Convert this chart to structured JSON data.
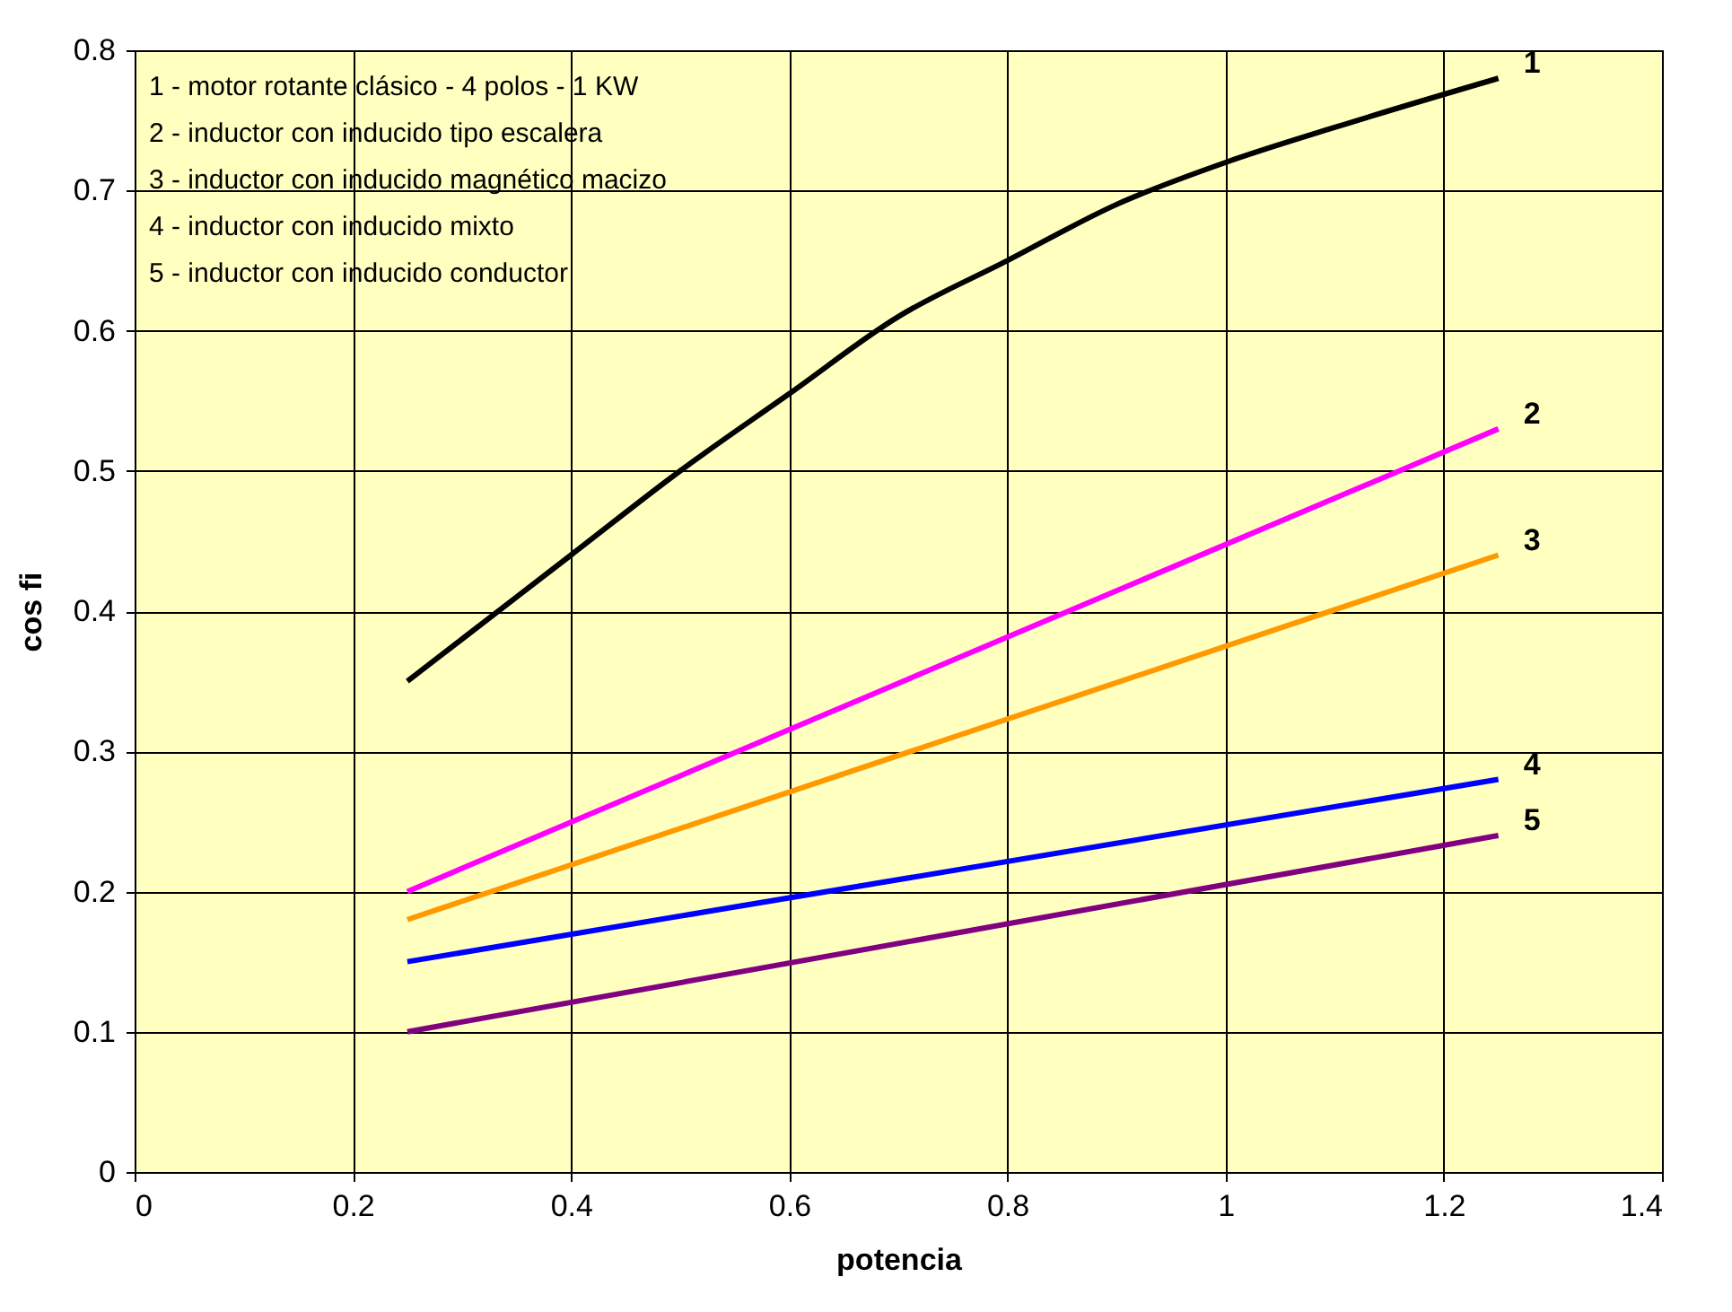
{
  "chart_data": {
    "type": "line",
    "xlabel": "potencia",
    "ylabel": "cos fi",
    "xlim": [
      0,
      1.4
    ],
    "xticks": [
      0,
      0.2,
      0.4,
      0.6,
      0.8,
      1,
      1.2,
      1.4
    ],
    "ylim": [
      0,
      0.8
    ],
    "yticks": [
      0,
      0.1,
      0.2,
      0.3,
      0.4,
      0.5,
      0.6,
      0.7,
      0.8
    ],
    "grid": true,
    "legend": false,
    "annotations": [
      "1  -  motor rotante clásico - 4 polos - 1 KW",
      "2  -  inductor con inducido tipo escalera",
      "3  -  inductor con inducido magnético macizo",
      "4  -  inductor con inducido mixto",
      "5  -  inductor con inducido conductor"
    ],
    "series": [
      {
        "name": "1",
        "color": "#000000",
        "x": [
          0.25,
          0.3,
          0.4,
          0.5,
          0.6,
          0.7,
          0.8,
          0.9,
          1.0,
          1.1,
          1.25
        ],
        "values": [
          0.35,
          0.38,
          0.44,
          0.5,
          0.555,
          0.61,
          0.65,
          0.69,
          0.72,
          0.745,
          0.78
        ]
      },
      {
        "name": "2",
        "color": "#ff00ff",
        "x": [
          0.25,
          1.25
        ],
        "values": [
          0.2,
          0.53
        ]
      },
      {
        "name": "3",
        "color": "#ff9900",
        "x": [
          0.25,
          1.25
        ],
        "values": [
          0.18,
          0.44
        ]
      },
      {
        "name": "4",
        "color": "#0000ff",
        "x": [
          0.25,
          1.25
        ],
        "values": [
          0.15,
          0.28
        ]
      },
      {
        "name": "5",
        "color": "#800080",
        "x": [
          0.25,
          1.25
        ],
        "values": [
          0.1,
          0.24
        ]
      }
    ]
  }
}
